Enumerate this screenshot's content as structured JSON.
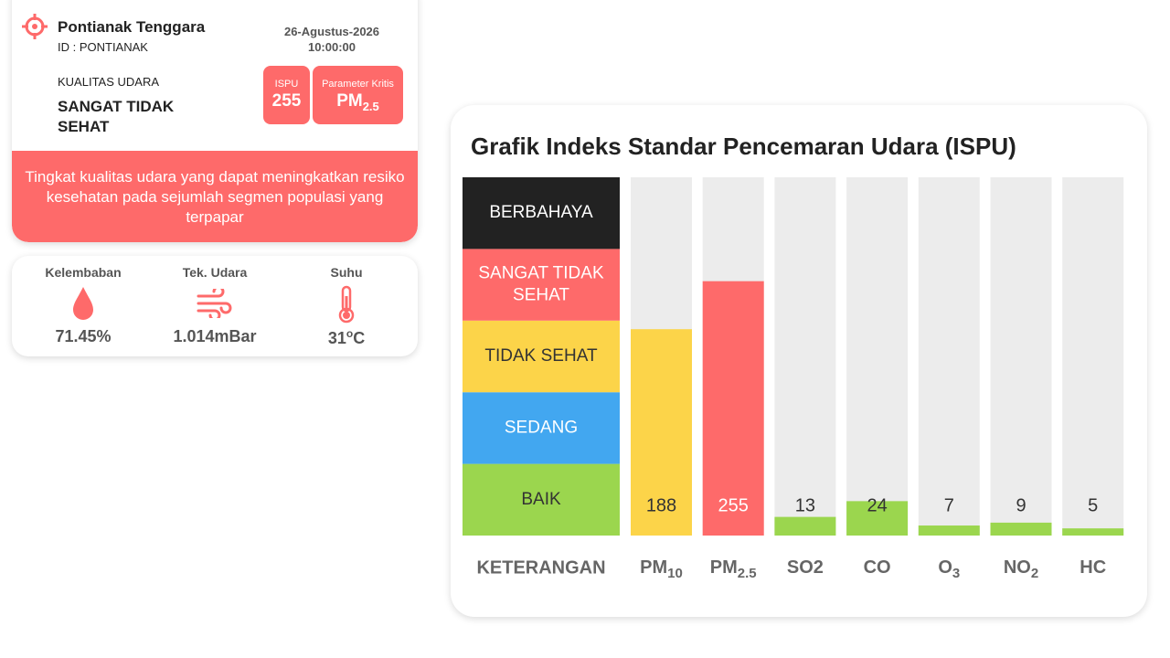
{
  "station": {
    "name": "Pontianak Tenggara",
    "id": "ID : PONTIANAK",
    "date": "26-Agustus-2026",
    "time": "10:00:00",
    "quality_label": "KUALITAS UDARA",
    "quality": "SANGAT TIDAK SEHAT",
    "ispu_label": "ISPU",
    "ispu": 255,
    "critical_label": "Parameter Kritis",
    "critical": "PM",
    "critical_sub": "2.5",
    "description": "Tingkat kualitas udara yang dapat meningkatkan resiko kesehatan pada sejumlah segmen populasi yang terpapar"
  },
  "weather": [
    {
      "label": "Kelembaban",
      "value": "71.45%"
    },
    {
      "label": "Tek. Udara",
      "value": "1.014mBar"
    },
    {
      "label": "Suhu",
      "value": "31",
      "sup": "o",
      "unit": "C"
    }
  ],
  "chart_data": {
    "type": "bar",
    "title": "Grafik Indeks Standar Pencemaran Udara (ISPU)",
    "x_label": "KETERANGAN",
    "categories": [
      "PM",
      "PM",
      "SO2",
      "CO",
      "O",
      "NO",
      "HC"
    ],
    "category_subscripts": [
      "10",
      "2.5",
      null,
      null,
      "3",
      "2",
      null
    ],
    "values": [
      188,
      255,
      13,
      24,
      7,
      9,
      5
    ],
    "bands": [
      {
        "label": "BAIK",
        "color": "#9bd64e",
        "text_color": "#333333",
        "range": [
          0,
          50
        ]
      },
      {
        "label": "SEDANG",
        "color": "#42a7f0",
        "text_color": "#ffffff",
        "range": [
          50,
          100
        ]
      },
      {
        "label": "TIDAK SEHAT",
        "color": "#fcd449",
        "text_color": "#333333",
        "range": [
          100,
          200
        ]
      },
      {
        "label": "SANGAT TIDAK SEHAT",
        "color": "#fe6a6a",
        "text_color": "#ffffff",
        "range": [
          200,
          300
        ]
      },
      {
        "label": "BERBAHAYA",
        "color": "#222222",
        "text_color": "#ffffff",
        "range": [
          300,
          500
        ]
      }
    ],
    "track_color": "#ececec"
  }
}
